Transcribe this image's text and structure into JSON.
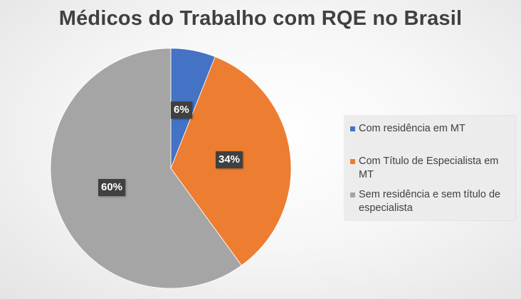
{
  "chart_data": {
    "type": "pie",
    "title": "Médicos do Trabalho com RQE no Brasil",
    "categories": [
      "Com residência em MT",
      "Com Título de Especialista em MT",
      "Sem residência e sem título de especialista"
    ],
    "values": [
      6,
      34,
      60
    ],
    "data_labels": [
      "6%",
      "34%",
      "60%"
    ],
    "colors": [
      "#4472c4",
      "#ed7d31",
      "#a5a5a5"
    ],
    "legend_position": "right",
    "start_angle": "top, clockwise"
  }
}
